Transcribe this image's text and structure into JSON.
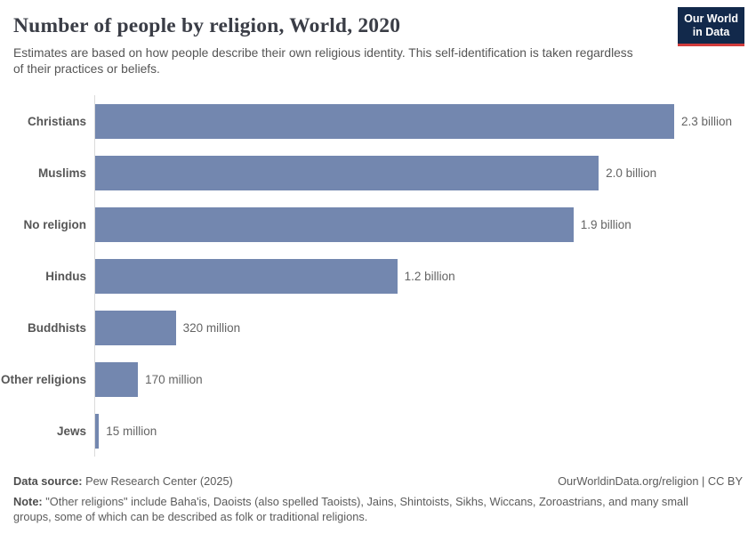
{
  "header": {
    "title": "Number of people by religion, World, 2020",
    "subtitle": "Estimates are based on how people describe their own religious identity. This self-identification is taken regardless of their practices or beliefs.",
    "logo": {
      "line1": "Our World",
      "line2": "in Data"
    }
  },
  "chart_data": {
    "type": "bar",
    "orientation": "horizontal",
    "title": "Number of people by religion, World, 2020",
    "categories": [
      "Christians",
      "Muslims",
      "No religion",
      "Hindus",
      "Buddhists",
      "Other religions",
      "Jews"
    ],
    "values_billions": [
      2.3,
      2.0,
      1.9,
      1.2,
      0.32,
      0.17,
      0.015
    ],
    "value_labels": [
      "2.3 billion",
      "2.0 billion",
      "1.9 billion",
      "1.2 billion",
      "320 million",
      "170 million",
      "15 million"
    ],
    "xlim": [
      0,
      2.3
    ],
    "grid": false,
    "legend": "none",
    "bar_color": "#7387af"
  },
  "footer": {
    "source_label": "Data source:",
    "source_text": "Pew Research Center (2025)",
    "license": "OurWorldinData.org/religion | CC BY",
    "note_label": "Note:",
    "note_text": "\"Other religions\" include Baha'is, Daoists (also spelled Taoists), Jains, Shintoists, Sikhs, Wiccans, Zoroastrians, and many small groups, some of which can be described as folk or traditional religions."
  },
  "colors": {
    "bar": "#7387af",
    "axis_line": "#dadada",
    "logo_navy": "#12294b",
    "logo_red": "#d13c3c"
  }
}
